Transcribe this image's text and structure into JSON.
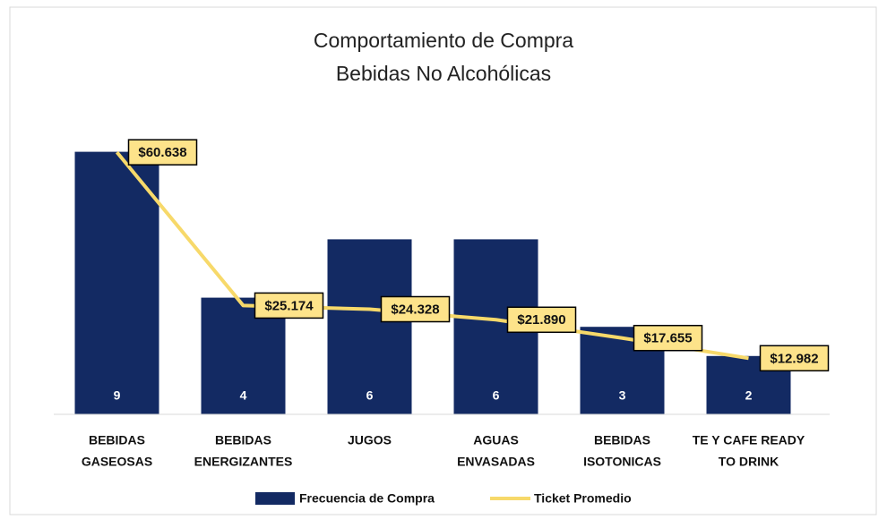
{
  "chart_data": {
    "type": "bar-line",
    "title": "Comportamiento de Compra",
    "subtitle": "Bebidas No Alcohólicas",
    "categories": [
      [
        "BEBIDAS",
        "GASEOSAS"
      ],
      [
        "BEBIDAS",
        "ENERGIZANTES"
      ],
      [
        "JUGOS"
      ],
      [
        "AGUAS",
        "ENVASADAS"
      ],
      [
        "BEBIDAS",
        "ISOTONICAS"
      ],
      [
        "TE Y CAFE READY",
        "TO DRINK"
      ]
    ],
    "series": [
      {
        "name": "Frecuencia de Compra",
        "type": "bar",
        "color": "#132a63",
        "values": [
          9,
          4,
          6,
          6,
          3,
          2
        ]
      },
      {
        "name": "Ticket Promedio",
        "type": "line",
        "axis": "y2",
        "color": "#f7d96a",
        "label_fill": "#fde38a",
        "values": [
          60638,
          25174,
          24328,
          21890,
          17655,
          12982
        ],
        "value_labels": [
          "$60.638",
          "$25.174",
          "$24.328",
          "$21.890",
          "$17.655",
          "$12.982"
        ]
      }
    ],
    "ylim": [
      0,
      10
    ],
    "y2lim": [
      0,
      67500
    ]
  }
}
